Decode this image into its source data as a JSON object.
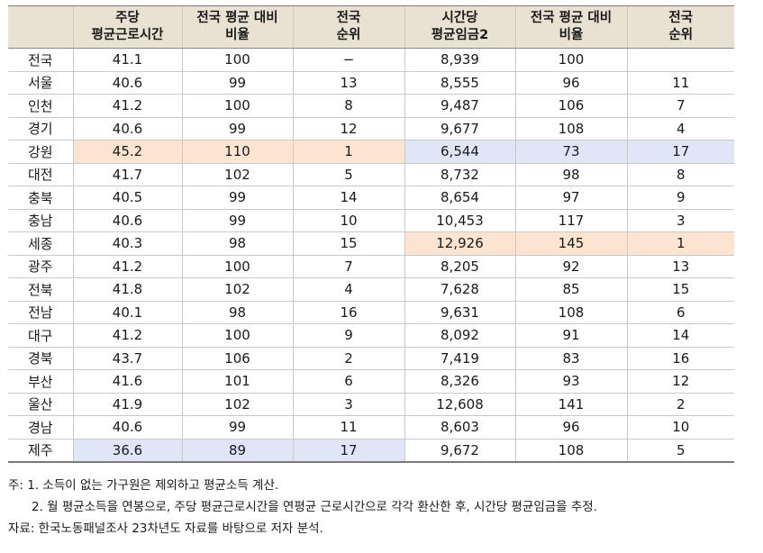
{
  "table": {
    "headers": [
      {
        "line1": "",
        "line2": ""
      },
      {
        "line1": "주당",
        "line2": "평균근로시간"
      },
      {
        "line1": "전국 평균 대비",
        "line2": "비율"
      },
      {
        "line1": "전국",
        "line2": "순위"
      },
      {
        "line1": "시간당",
        "line2": "평균임금2"
      },
      {
        "line1": "전국 평균 대비",
        "line2": "비율"
      },
      {
        "line1": "전국",
        "line2": "순위"
      }
    ],
    "rows": [
      {
        "region": "전국",
        "hours": "41.1",
        "hours_ratio": "100",
        "hours_rank": "−",
        "wage": "8,939",
        "wage_ratio": "100",
        "wage_rank": ""
      },
      {
        "region": "서울",
        "hours": "40.6",
        "hours_ratio": "99",
        "hours_rank": "13",
        "wage": "8,555",
        "wage_ratio": "96",
        "wage_rank": "11"
      },
      {
        "region": "인천",
        "hours": "41.2",
        "hours_ratio": "100",
        "hours_rank": "8",
        "wage": "9,487",
        "wage_ratio": "106",
        "wage_rank": "7"
      },
      {
        "region": "경기",
        "hours": "40.6",
        "hours_ratio": "99",
        "hours_rank": "12",
        "wage": "9,677",
        "wage_ratio": "108",
        "wage_rank": "4"
      },
      {
        "region": "강원",
        "hours": "45.2",
        "hours_ratio": "110",
        "hours_rank": "1",
        "wage": "6,544",
        "wage_ratio": "73",
        "wage_rank": "17"
      },
      {
        "region": "대전",
        "hours": "41.7",
        "hours_ratio": "102",
        "hours_rank": "5",
        "wage": "8,732",
        "wage_ratio": "98",
        "wage_rank": "8"
      },
      {
        "region": "충북",
        "hours": "40.5",
        "hours_ratio": "99",
        "hours_rank": "14",
        "wage": "8,654",
        "wage_ratio": "97",
        "wage_rank": "9"
      },
      {
        "region": "충남",
        "hours": "40.6",
        "hours_ratio": "99",
        "hours_rank": "10",
        "wage": "10,453",
        "wage_ratio": "117",
        "wage_rank": "3"
      },
      {
        "region": "세종",
        "hours": "40.3",
        "hours_ratio": "98",
        "hours_rank": "15",
        "wage": "12,926",
        "wage_ratio": "145",
        "wage_rank": "1"
      },
      {
        "region": "광주",
        "hours": "41.2",
        "hours_ratio": "100",
        "hours_rank": "7",
        "wage": "8,205",
        "wage_ratio": "92",
        "wage_rank": "13"
      },
      {
        "region": "전북",
        "hours": "41.8",
        "hours_ratio": "102",
        "hours_rank": "4",
        "wage": "7,628",
        "wage_ratio": "85",
        "wage_rank": "15"
      },
      {
        "region": "전남",
        "hours": "40.1",
        "hours_ratio": "98",
        "hours_rank": "16",
        "wage": "9,631",
        "wage_ratio": "108",
        "wage_rank": "6"
      },
      {
        "region": "대구",
        "hours": "41.2",
        "hours_ratio": "100",
        "hours_rank": "9",
        "wage": "8,092",
        "wage_ratio": "91",
        "wage_rank": "14"
      },
      {
        "region": "경북",
        "hours": "43.7",
        "hours_ratio": "106",
        "hours_rank": "2",
        "wage": "7,419",
        "wage_ratio": "83",
        "wage_rank": "16"
      },
      {
        "region": "부산",
        "hours": "41.6",
        "hours_ratio": "101",
        "hours_rank": "6",
        "wage": "8,326",
        "wage_ratio": "93",
        "wage_rank": "12"
      },
      {
        "region": "울산",
        "hours": "41.9",
        "hours_ratio": "102",
        "hours_rank": "3",
        "wage": "12,608",
        "wage_ratio": "141",
        "wage_rank": "2"
      },
      {
        "region": "경남",
        "hours": "40.6",
        "hours_ratio": "99",
        "hours_rank": "11",
        "wage": "8,603",
        "wage_ratio": "96",
        "wage_rank": "10"
      },
      {
        "region": "제주",
        "hours": "36.6",
        "hours_ratio": "89",
        "hours_rank": "17",
        "wage": "9,672",
        "wage_ratio": "108",
        "wage_rank": "5"
      }
    ],
    "highlight_colors": {
      "max": "#fde4d0",
      "min": "#dfe6f8"
    },
    "header_color": "#e9e2d3"
  },
  "notes": {
    "note1": "주: 1. 소득이 없는 가구원은 제외하고 평균소득 계산.",
    "note2": "2. 월 평균소득을 연봉으로, 주당 평균근로시간을 연평균 근로시간으로 각각 환산한 후, 시간당 평균임금을 추정.",
    "source": "자료: 한국노동패널조사 23차년도 자료를 바탕으로 저자 분석."
  }
}
